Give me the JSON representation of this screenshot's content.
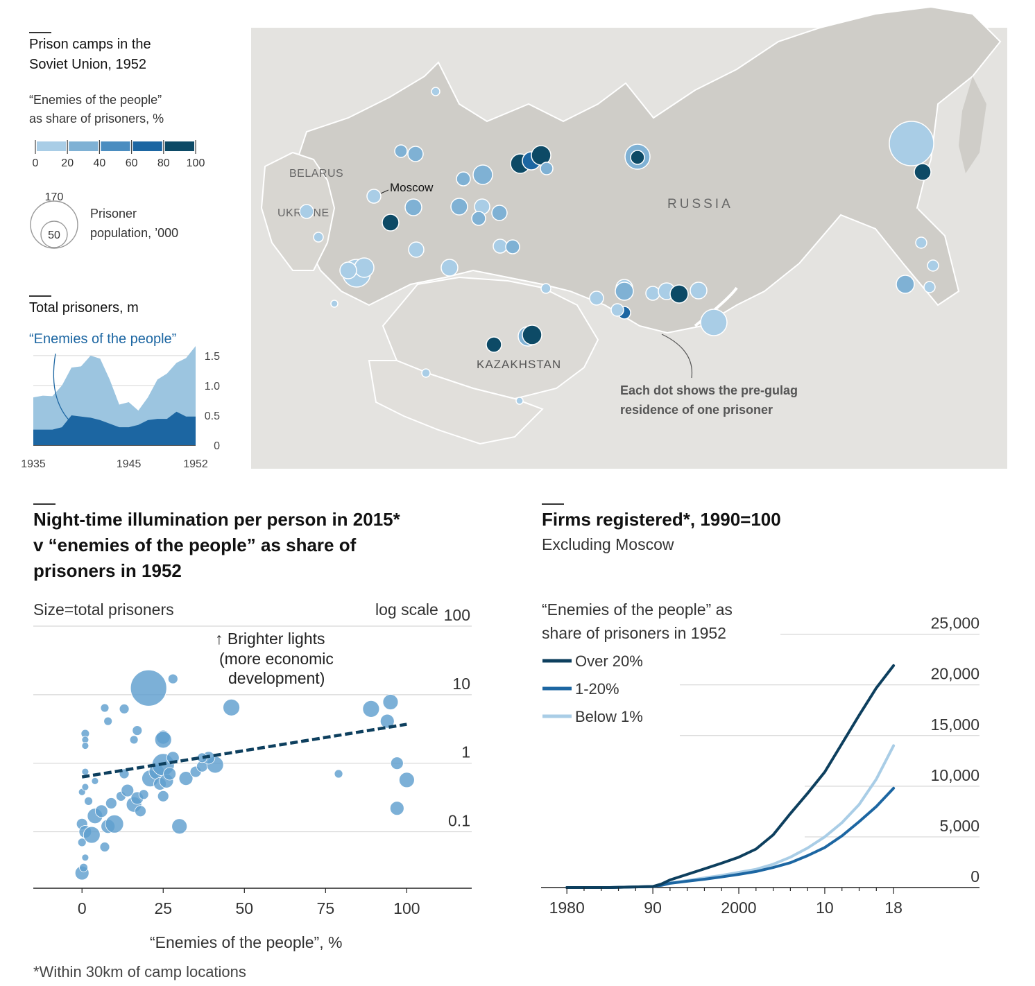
{
  "map_panel": {
    "title_line1": "Prison camps in the",
    "title_line2": "Soviet Union, 1952",
    "legend_title_line1": "“Enemies of the people”",
    "legend_title_line2": "as share of prisoners, %",
    "legend_ticks": [
      "0",
      "20",
      "40",
      "60",
      "80",
      "100"
    ],
    "legend_colors": [
      "#a9cde6",
      "#7fb1d4",
      "#4b8dc0",
      "#1c66a2",
      "#0d4a66"
    ],
    "size_big_label": "170",
    "size_small_label": "50",
    "size_caption_line1": "Prisoner",
    "size_caption_line2": "population, ’000",
    "label_belarus": "BELARUS",
    "label_ukraine": "UKRAINE",
    "label_moscow": "Moscow",
    "label_russia": "RUSSIA",
    "label_kazakhstan": "KAZAKHSTAN",
    "note_line1": "Each dot shows the pre-gulag",
    "note_line2": "residence of one prisoner"
  },
  "total_panel": {
    "title": "Total prisoners, m",
    "enemies_label": "“Enemies of the people”"
  },
  "scatter_panel": {
    "title_line1": "Night-time illumination per person in 2015*",
    "title_line2": "v “enemies of the people” as share of",
    "title_line3": "prisoners in 1952",
    "size_note": "Size=total prisoners",
    "scale_note": "log scale",
    "annotation_line1": "↑ Brighter lights",
    "annotation_line2": "(more economic",
    "annotation_line3": "development)",
    "footnote": "*Within 30km of camp locations"
  },
  "firms_panel": {
    "title": "Firms registered*, 1990=100",
    "subtitle": "Excluding Moscow",
    "legend_title_line1": "“Enemies of the people” as",
    "legend_title_line2": "share of prisoners in 1952"
  },
  "chart_data": [
    {
      "type": "area",
      "title": "Total prisoners, m",
      "x": [
        1935,
        1936,
        1937,
        1938,
        1939,
        1940,
        1941,
        1942,
        1943,
        1944,
        1945,
        1946,
        1947,
        1948,
        1949,
        1950,
        1951,
        1952
      ],
      "x_ticks": [
        "1935",
        "1945",
        "1952"
      ],
      "y_ticks": [
        "0",
        "0.5",
        "1.0",
        "1.5"
      ],
      "ylim": [
        0,
        1.65
      ],
      "series": [
        {
          "name": "Total",
          "color": "#9cc5e0",
          "values": [
            0.8,
            0.83,
            0.82,
            1.0,
            1.3,
            1.32,
            1.5,
            1.45,
            1.1,
            0.68,
            0.72,
            0.58,
            0.8,
            1.1,
            1.2,
            1.38,
            1.46,
            1.66
          ]
        },
        {
          "name": "“Enemies of the people”",
          "color": "#1c66a2",
          "values": [
            0.26,
            0.26,
            0.26,
            0.3,
            0.5,
            0.48,
            0.46,
            0.42,
            0.36,
            0.3,
            0.3,
            0.34,
            0.42,
            0.44,
            0.44,
            0.56,
            0.48,
            0.48
          ]
        }
      ]
    },
    {
      "type": "scatter",
      "title": "Night-time illumination per person in 2015*",
      "xlabel": "“Enemies of the people”, %",
      "ylabel": "log scale",
      "xlim": [
        -15,
        120
      ],
      "ylim": [
        0.015,
        100
      ],
      "x_ticks": [
        "0",
        "25",
        "50",
        "75",
        "100"
      ],
      "y_ticks": [
        "0.1",
        "1",
        "10",
        "100"
      ],
      "color": "#5f9fce",
      "trend": {
        "x": [
          0,
          100
        ],
        "y": [
          0.63,
          3.7
        ],
        "color": "#0d3f5e"
      },
      "points": [
        {
          "x": 0,
          "y": 0.025,
          "r": 10
        },
        {
          "x": 0.5,
          "y": 0.03,
          "r": 6
        },
        {
          "x": 1,
          "y": 0.042,
          "r": 5
        },
        {
          "x": 0,
          "y": 0.07,
          "r": 6
        },
        {
          "x": 0,
          "y": 0.13,
          "r": 8
        },
        {
          "x": 1,
          "y": 0.1,
          "r": 9
        },
        {
          "x": 3,
          "y": 0.09,
          "r": 12
        },
        {
          "x": 4,
          "y": 0.17,
          "r": 11
        },
        {
          "x": 6,
          "y": 0.2,
          "r": 9
        },
        {
          "x": 2,
          "y": 0.28,
          "r": 6
        },
        {
          "x": 0,
          "y": 0.38,
          "r": 5
        },
        {
          "x": 1,
          "y": 0.45,
          "r": 5
        },
        {
          "x": 7,
          "y": 0.06,
          "r": 7
        },
        {
          "x": 8,
          "y": 0.12,
          "r": 10
        },
        {
          "x": 10,
          "y": 0.13,
          "r": 13
        },
        {
          "x": 9,
          "y": 0.26,
          "r": 8
        },
        {
          "x": 12,
          "y": 0.33,
          "r": 7
        },
        {
          "x": 14,
          "y": 0.4,
          "r": 9
        },
        {
          "x": 16,
          "y": 0.25,
          "r": 11
        },
        {
          "x": 17,
          "y": 0.31,
          "r": 9
        },
        {
          "x": 18,
          "y": 0.2,
          "r": 8
        },
        {
          "x": 19,
          "y": 0.35,
          "r": 7
        },
        {
          "x": 21,
          "y": 0.6,
          "r": 12
        },
        {
          "x": 23,
          "y": 0.75,
          "r": 11
        },
        {
          "x": 24,
          "y": 0.5,
          "r": 9
        },
        {
          "x": 25,
          "y": 0.33,
          "r": 8
        },
        {
          "x": 25,
          "y": 0.95,
          "r": 16
        },
        {
          "x": 26,
          "y": 0.55,
          "r": 10
        },
        {
          "x": 27,
          "y": 0.7,
          "r": 9
        },
        {
          "x": 28,
          "y": 1.2,
          "r": 9
        },
        {
          "x": 30,
          "y": 0.12,
          "r": 11
        },
        {
          "x": 32,
          "y": 0.6,
          "r": 10
        },
        {
          "x": 35,
          "y": 0.75,
          "r": 8
        },
        {
          "x": 37,
          "y": 0.9,
          "r": 8
        },
        {
          "x": 41,
          "y": 0.95,
          "r": 12
        },
        {
          "x": 39,
          "y": 1.2,
          "r": 9
        },
        {
          "x": 13,
          "y": 0.7,
          "r": 7
        },
        {
          "x": 16,
          "y": 2.2,
          "r": 6
        },
        {
          "x": 25,
          "y": 2.4,
          "r": 10
        },
        {
          "x": 25,
          "y": 2.2,
          "r": 12
        },
        {
          "x": 17,
          "y": 3.0,
          "r": 7
        },
        {
          "x": 13,
          "y": 6.2,
          "r": 7
        },
        {
          "x": 8,
          "y": 4.1,
          "r": 6
        },
        {
          "x": 7,
          "y": 6.4,
          "r": 6
        },
        {
          "x": 1,
          "y": 2.7,
          "r": 6
        },
        {
          "x": 1,
          "y": 2.2,
          "r": 5
        },
        {
          "x": 1,
          "y": 1.8,
          "r": 5
        },
        {
          "x": 37,
          "y": 1.2,
          "r": 7
        },
        {
          "x": 46,
          "y": 6.5,
          "r": 12
        },
        {
          "x": 28,
          "y": 17,
          "r": 7
        },
        {
          "x": 20.5,
          "y": 12.5,
          "r": 26
        },
        {
          "x": 79,
          "y": 0.7,
          "r": 6
        },
        {
          "x": 89,
          "y": 6.2,
          "r": 12
        },
        {
          "x": 95,
          "y": 7.8,
          "r": 11
        },
        {
          "x": 94,
          "y": 4.1,
          "r": 10
        },
        {
          "x": 97,
          "y": 1.0,
          "r": 9
        },
        {
          "x": 100,
          "y": 0.57,
          "r": 11
        },
        {
          "x": 97,
          "y": 0.22,
          "r": 10
        },
        {
          "x": 1,
          "y": 0.75,
          "r": 5
        },
        {
          "x": 4,
          "y": 0.55,
          "r": 5
        }
      ]
    },
    {
      "type": "line",
      "title": "Firms registered*, 1990=100",
      "subtitle": "Excluding Moscow",
      "x_ticks": [
        "1980",
        "90",
        "2000",
        "10",
        "18"
      ],
      "y_ticks": [
        "0",
        "5,000",
        "10,000",
        "15,000",
        "20,000",
        "25,000"
      ],
      "xlim": [
        1977,
        2028
      ],
      "ylim": [
        0,
        26000
      ],
      "series": [
        {
          "name": "Over 20%",
          "color": "#0d3f5e",
          "x": [
            1980,
            1985,
            1990,
            1991,
            1992,
            1994,
            1996,
            1998,
            2000,
            2002,
            2004,
            2006,
            2008,
            2010,
            2012,
            2014,
            2016,
            2018
          ],
          "values": [
            0,
            0,
            100,
            350,
            750,
            1300,
            1850,
            2400,
            3000,
            3800,
            5200,
            7300,
            9300,
            11400,
            14200,
            17000,
            19700,
            21900
          ]
        },
        {
          "name": "1-20%",
          "color": "#1c66a2",
          "x": [
            1980,
            1985,
            1990,
            1991,
            1992,
            1994,
            1996,
            1998,
            2000,
            2002,
            2004,
            2006,
            2008,
            2010,
            2012,
            2014,
            2016,
            2018
          ],
          "values": [
            0,
            0,
            100,
            220,
            420,
            620,
            820,
            1050,
            1300,
            1580,
            1980,
            2450,
            3150,
            3950,
            5100,
            6500,
            8000,
            9800
          ]
        },
        {
          "name": "Below 1%",
          "color": "#a9cde6",
          "x": [
            1980,
            1985,
            1990,
            1991,
            1992,
            1994,
            1996,
            1998,
            2000,
            2002,
            2004,
            2006,
            2008,
            2010,
            2012,
            2014,
            2016,
            2018
          ],
          "values": [
            0,
            0,
            100,
            250,
            450,
            700,
            950,
            1200,
            1500,
            1800,
            2300,
            3000,
            3900,
            5000,
            6400,
            8200,
            10700,
            14000
          ]
        }
      ]
    }
  ]
}
